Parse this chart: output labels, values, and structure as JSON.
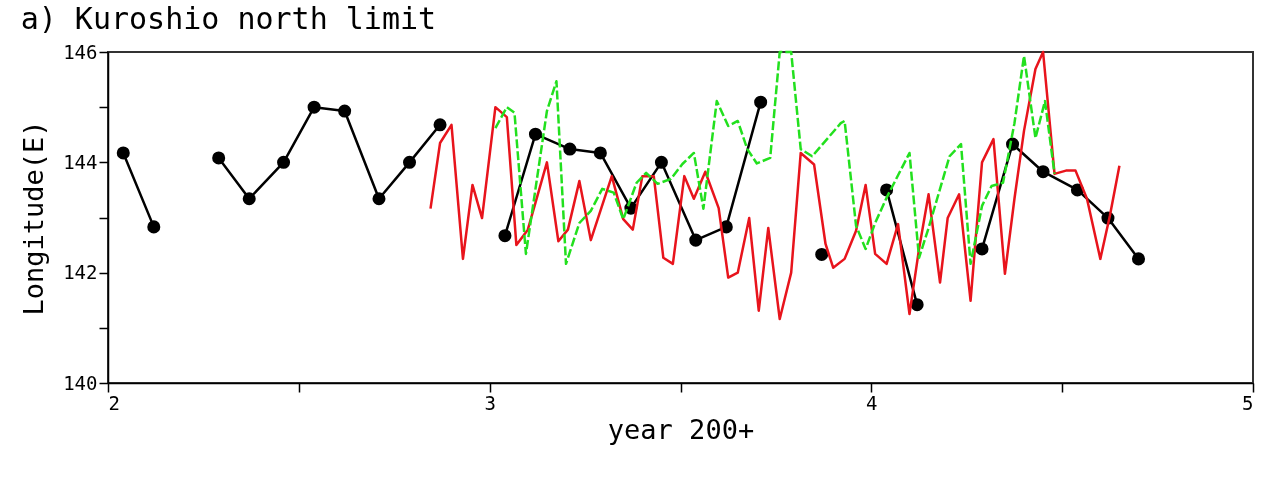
{
  "chart_data": {
    "type": "line",
    "title": "a) Kuroshio north limit",
    "xlabel": "year 200+",
    "ylabel": "Longitude(E)",
    "xlim": [
      2,
      5
    ],
    "xticks": [
      2,
      {
        "value": 2.5,
        "label": null
      },
      3,
      {
        "value": 3.5,
        "label": null
      },
      4,
      {
        "value": 4.5,
        "label": null
      },
      5
    ],
    "ylim": [
      140,
      146
    ],
    "yticks": [
      140,
      {
        "value": 141,
        "label": null
      },
      142,
      {
        "value": 143,
        "label": null
      },
      144,
      {
        "value": 145,
        "label": null
      },
      146
    ],
    "grid": false,
    "series": [
      {
        "color": "#000000",
        "marker": "circle",
        "line_style": "solid",
        "x": [
          2.04,
          2.12,
          2.21,
          2.29,
          2.37,
          2.46,
          2.54,
          2.62,
          2.71,
          2.79,
          2.87,
          2.96,
          3.04,
          3.12,
          3.21,
          3.29,
          3.37,
          3.45,
          3.54,
          3.62,
          3.71,
          3.79,
          3.87,
          3.96,
          4.04,
          4.12,
          4.21,
          4.29,
          4.37,
          4.45,
          4.54,
          4.62,
          4.7
        ],
        "values": [
          144.17,
          142.83,
          null,
          144.08,
          143.34,
          144.0,
          145.0,
          144.93,
          143.34,
          144.0,
          144.68,
          null,
          142.67,
          144.51,
          144.24,
          144.17,
          143.17,
          144.0,
          142.59,
          142.83,
          145.09,
          null,
          142.33,
          null,
          143.5,
          141.42,
          null,
          142.43,
          144.33,
          143.83,
          143.5,
          142.99,
          142.25
        ]
      },
      {
        "color": "#e8141c",
        "marker": "none",
        "line_style": "solid",
        "x": [
          2.845,
          2.87,
          2.9,
          2.93,
          2.955,
          2.98,
          3.015,
          3.045,
          3.07,
          3.1,
          3.15,
          3.18,
          3.205,
          3.235,
          3.265,
          3.32,
          3.35,
          3.375,
          3.4,
          3.43,
          3.455,
          3.48,
          3.51,
          3.535,
          3.565,
          3.6,
          3.625,
          3.65,
          3.68,
          3.705,
          3.73,
          3.76,
          3.79,
          3.815,
          3.85,
          3.88,
          3.9,
          3.93,
          3.96,
          3.985,
          4.01,
          4.04,
          4.07,
          4.1,
          4.125,
          4.15,
          4.18,
          4.2,
          4.23,
          4.26,
          4.29,
          4.32,
          4.35,
          4.375,
          4.4,
          4.43,
          4.45,
          4.48,
          4.51,
          4.535,
          4.565,
          4.6,
          4.625,
          4.65
        ],
        "values": [
          143.16,
          144.35,
          144.68,
          142.25,
          143.59,
          142.99,
          145.0,
          144.82,
          142.5,
          142.78,
          144.0,
          142.57,
          142.78,
          143.66,
          142.59,
          143.75,
          142.97,
          142.78,
          143.75,
          143.75,
          142.27,
          142.16,
          143.75,
          143.34,
          143.83,
          143.17,
          141.91,
          142.0,
          142.99,
          141.31,
          142.81,
          141.16,
          142.0,
          144.17,
          143.96,
          142.52,
          142.09,
          142.25,
          142.76,
          143.59,
          142.34,
          142.16,
          142.88,
          141.25,
          142.43,
          143.42,
          141.82,
          142.99,
          143.42,
          141.49,
          144.0,
          144.42,
          141.98,
          143.34,
          144.57,
          145.69,
          146.0,
          143.79,
          143.85,
          143.85,
          143.34,
          142.25,
          143.03,
          143.94
        ]
      },
      {
        "color": "#22e01e",
        "marker": "none",
        "line_style": "dashed",
        "x": [
          3.015,
          3.045,
          3.065,
          3.095,
          3.15,
          3.175,
          3.2,
          3.235,
          3.265,
          3.295,
          3.325,
          3.35,
          3.385,
          3.41,
          3.44,
          3.475,
          3.505,
          3.535,
          3.56,
          3.595,
          3.625,
          3.65,
          3.675,
          3.7,
          3.735,
          3.76,
          3.79,
          3.815,
          3.845,
          3.92,
          3.93,
          3.96,
          3.985,
          4.01,
          4.04,
          4.1,
          4.125,
          4.15,
          4.205,
          4.235,
          4.26,
          4.29,
          4.315,
          4.345,
          4.375,
          4.4,
          4.43,
          4.455,
          4.48
        ],
        "values": [
          144.62,
          145.0,
          144.9,
          142.34,
          144.93,
          145.47,
          142.16,
          142.9,
          143.12,
          143.52,
          143.45,
          142.97,
          143.63,
          143.81,
          143.61,
          143.7,
          143.97,
          144.17,
          143.16,
          145.11,
          144.66,
          144.75,
          144.24,
          143.98,
          144.08,
          146.0,
          146.0,
          144.24,
          144.11,
          144.71,
          144.75,
          142.85,
          142.43,
          142.9,
          143.36,
          144.17,
          142.27,
          142.81,
          144.11,
          144.33,
          142.16,
          143.21,
          143.57,
          143.63,
          144.71,
          145.93,
          144.44,
          145.11,
          143.79
        ]
      }
    ]
  }
}
